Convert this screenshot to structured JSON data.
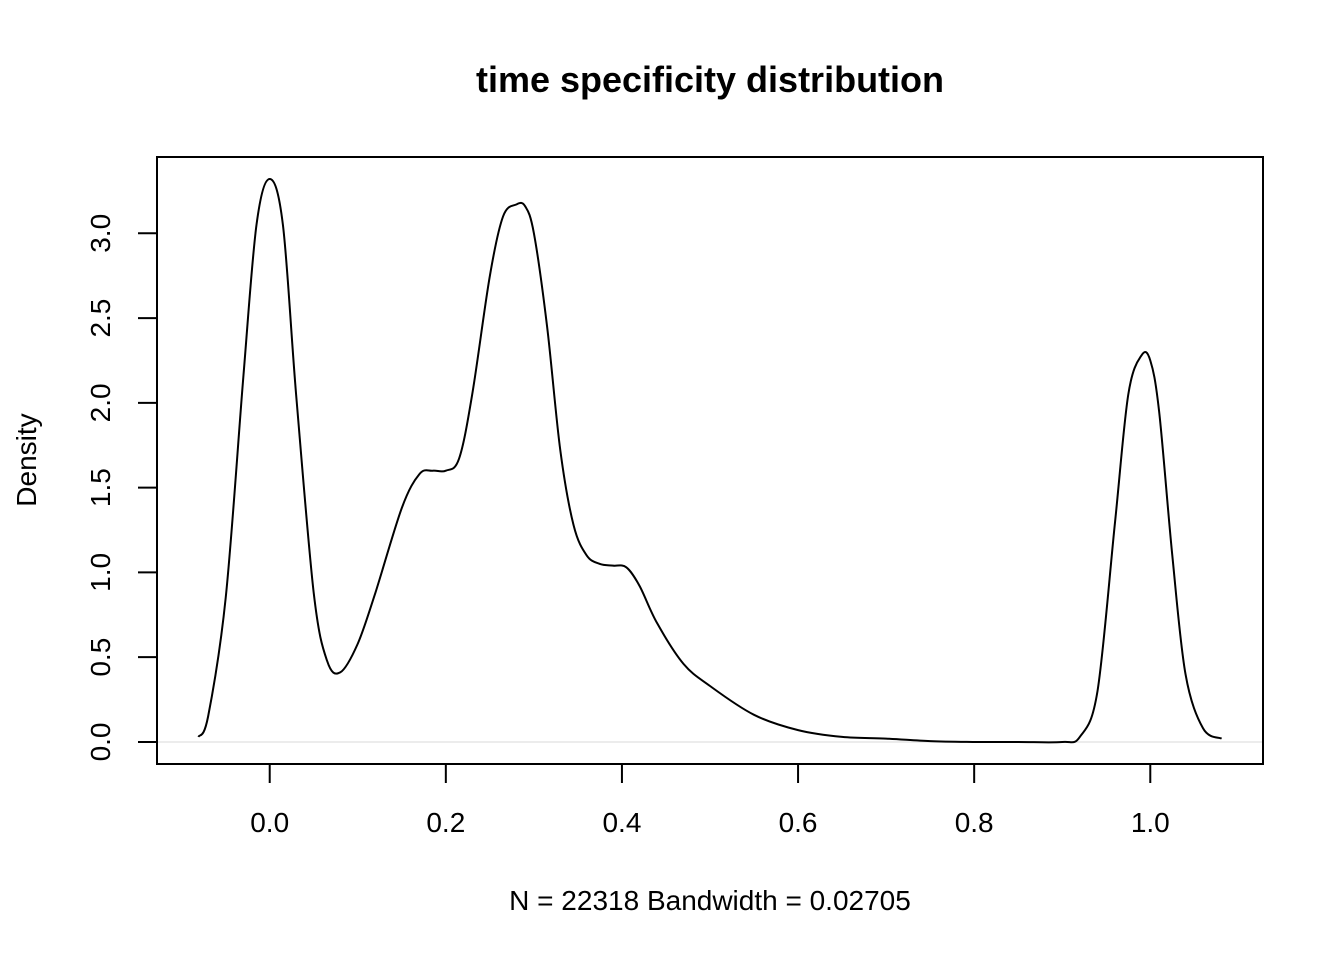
{
  "chart_data": {
    "type": "line",
    "title": "time specificity distribution",
    "xlabel": "N = 22318   Bandwidth = 0.02705",
    "ylabel": "Density",
    "xlim": [
      -0.128,
      1.128
    ],
    "ylim": [
      -0.13,
      3.45
    ],
    "x_ticks": [
      0.0,
      0.2,
      0.4,
      0.6,
      0.8,
      1.0
    ],
    "x_tick_labels": [
      "0.0",
      "0.2",
      "0.4",
      "0.6",
      "0.8",
      "1.0"
    ],
    "y_ticks": [
      0.0,
      0.5,
      1.0,
      1.5,
      2.0,
      2.5,
      3.0
    ],
    "y_tick_labels": [
      "0.0",
      "0.5",
      "1.0",
      "1.5",
      "2.0",
      "2.5",
      "3.0"
    ],
    "grid": false,
    "legend": "none",
    "baseline_y": 0,
    "line_color": "#000000",
    "baseline_color": "#d9d9d9",
    "series": [
      {
        "x": [
          -0.081,
          -0.07,
          -0.05,
          -0.03,
          -0.015,
          0.0,
          0.015,
          0.03,
          0.05,
          0.065,
          0.08,
          0.1,
          0.12,
          0.15,
          0.17,
          0.185,
          0.2,
          0.215,
          0.23,
          0.25,
          0.265,
          0.28,
          0.29,
          0.3,
          0.315,
          0.33,
          0.345,
          0.36,
          0.375,
          0.39,
          0.405,
          0.42,
          0.44,
          0.47,
          0.5,
          0.55,
          0.6,
          0.65,
          0.7,
          0.75,
          0.8,
          0.85,
          0.9,
          0.92,
          0.94,
          0.96,
          0.975,
          0.99,
          1.0,
          1.01,
          1.025,
          1.04,
          1.06,
          1.081
        ],
        "y": [
          0.03,
          0.15,
          0.85,
          2.15,
          3.05,
          3.32,
          3.05,
          2.05,
          0.88,
          0.48,
          0.41,
          0.58,
          0.88,
          1.38,
          1.58,
          1.6,
          1.6,
          1.67,
          2.05,
          2.75,
          3.1,
          3.17,
          3.16,
          3.0,
          2.45,
          1.72,
          1.28,
          1.1,
          1.05,
          1.04,
          1.03,
          0.92,
          0.7,
          0.46,
          0.33,
          0.16,
          0.07,
          0.03,
          0.02,
          0.005,
          0.0,
          0.0,
          0.0,
          0.03,
          0.3,
          1.3,
          2.05,
          2.28,
          2.25,
          1.95,
          1.1,
          0.4,
          0.08,
          0.02
        ]
      }
    ]
  }
}
